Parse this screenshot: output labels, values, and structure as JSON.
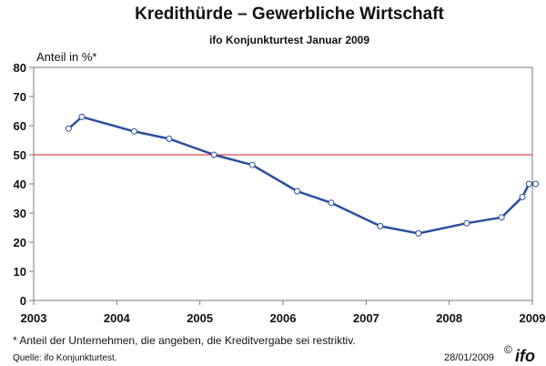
{
  "header": {
    "title": "Kredithürde – Gewerbliche Wirtschaft",
    "subtitle": "ifo Konjunkturtest Januar 2009"
  },
  "footer": {
    "footnote": "* Anteil der Unternehmen, die angeben, die Kreditvergabe sei restriktiv.",
    "source": "Quelle: ifo Konjunkturtest.",
    "date": "28/01/2009",
    "copyright": "©",
    "logo": "ifo"
  },
  "colors": {
    "line": "#2a4f9c",
    "marker_fill": "#ffffff",
    "reference_line": "#e01818",
    "plot_background": "#ffffff"
  },
  "chart_data": {
    "type": "line",
    "ylabel": "Anteil in %*",
    "xlabel": "",
    "xlim": [
      2003,
      2009
    ],
    "ylim": [
      0,
      80
    ],
    "yticks": [
      0,
      10,
      20,
      30,
      40,
      50,
      60,
      70,
      80
    ],
    "xticks": [
      2003,
      2004,
      2005,
      2006,
      2007,
      2008,
      2009
    ],
    "grid": false,
    "legend": "none",
    "reference_line": 50,
    "series": [
      {
        "x": [
          2003.42,
          2003.58,
          2004.21,
          2004.63,
          2005.17,
          2005.63,
          2006.17,
          2006.58,
          2007.17,
          2007.63,
          2008.21,
          2008.63,
          2008.88,
          2008.96,
          2009.04
        ],
        "y": [
          59,
          63,
          58,
          55.5,
          50,
          46.5,
          37.5,
          33.5,
          25.5,
          23,
          26.5,
          28.5,
          35.5,
          40,
          40
        ]
      }
    ]
  }
}
